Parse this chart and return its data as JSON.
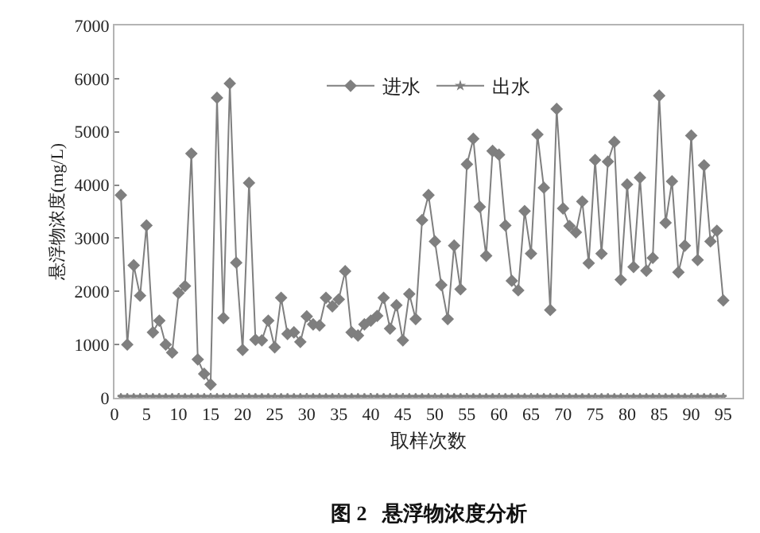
{
  "chart_data": {
    "type": "line",
    "title": "图 2   悬浮物浓度分析",
    "xlabel": "取样次数",
    "ylabel": "悬浮物浓度(mg/L)",
    "x": [
      1,
      2,
      3,
      4,
      5,
      6,
      7,
      8,
      9,
      10,
      11,
      12,
      13,
      14,
      15,
      16,
      17,
      18,
      19,
      20,
      21,
      22,
      23,
      24,
      25,
      26,
      27,
      28,
      29,
      30,
      31,
      32,
      33,
      34,
      35,
      36,
      37,
      38,
      39,
      40,
      41,
      42,
      43,
      44,
      45,
      46,
      47,
      48,
      49,
      50,
      51,
      52,
      53,
      54,
      55,
      56,
      57,
      58,
      59,
      60,
      61,
      62,
      63,
      64,
      65,
      66,
      67,
      68,
      69,
      70,
      71,
      72,
      73,
      74,
      75,
      76,
      77,
      78,
      79,
      80,
      81,
      82,
      83,
      84,
      85,
      86,
      87,
      88,
      89,
      90,
      91,
      92,
      93,
      94,
      95
    ],
    "series": [
      {
        "name": "进水",
        "color": "#7f7f7f",
        "marker": "diamond",
        "values": [
          3810,
          1000,
          2490,
          1920,
          3240,
          1230,
          1450,
          1000,
          850,
          1970,
          2100,
          4590,
          720,
          450,
          250,
          5640,
          1500,
          5910,
          2540,
          900,
          4040,
          1090,
          1080,
          1450,
          950,
          1880,
          1200,
          1230,
          1050,
          1530,
          1380,
          1360,
          1880,
          1720,
          1850,
          2380,
          1230,
          1170,
          1380,
          1450,
          1540,
          1880,
          1300,
          1740,
          1080,
          1950,
          1480,
          3340,
          3810,
          2940,
          2120,
          1480,
          2860,
          2040,
          4390,
          4870,
          3590,
          2670,
          4640,
          4570,
          3240,
          2200,
          2020,
          3510,
          2710,
          4950,
          3950,
          1650,
          5430,
          3560,
          3230,
          3110,
          3690,
          2530,
          4470,
          2710,
          4440,
          4810,
          2220,
          4010,
          2460,
          4140,
          2390,
          2630,
          5680,
          3290,
          4070,
          2360,
          2860,
          4930,
          2590,
          4370,
          2940,
          3140,
          1830
        ]
      },
      {
        "name": "出水",
        "color": "#7f7f7f",
        "marker": "star",
        "values": [
          20,
          20,
          20,
          20,
          20,
          20,
          20,
          20,
          20,
          20,
          20,
          20,
          20,
          20,
          20,
          20,
          20,
          20,
          20,
          20,
          20,
          20,
          20,
          20,
          20,
          20,
          20,
          20,
          20,
          20,
          20,
          20,
          20,
          20,
          20,
          20,
          20,
          20,
          20,
          20,
          20,
          20,
          20,
          20,
          20,
          20,
          20,
          20,
          20,
          20,
          20,
          20,
          20,
          20,
          20,
          20,
          20,
          20,
          20,
          20,
          20,
          20,
          20,
          20,
          20,
          20,
          20,
          20,
          20,
          20,
          20,
          20,
          20,
          20,
          20,
          20,
          20,
          20,
          20,
          20,
          20,
          20,
          20,
          20,
          20,
          20,
          20,
          20,
          20,
          20,
          20,
          20,
          20,
          20,
          20
        ]
      }
    ],
    "xlim": [
      0,
      98
    ],
    "xticks": [
      0,
      5,
      10,
      15,
      20,
      25,
      30,
      35,
      40,
      45,
      50,
      55,
      60,
      65,
      70,
      75,
      80,
      85,
      90,
      95
    ],
    "ylim": [
      0,
      7000
    ],
    "yticks": [
      0,
      1000,
      2000,
      3000,
      4000,
      5000,
      6000,
      7000
    ],
    "grid": false,
    "legend": "top",
    "line_style": "solid"
  }
}
